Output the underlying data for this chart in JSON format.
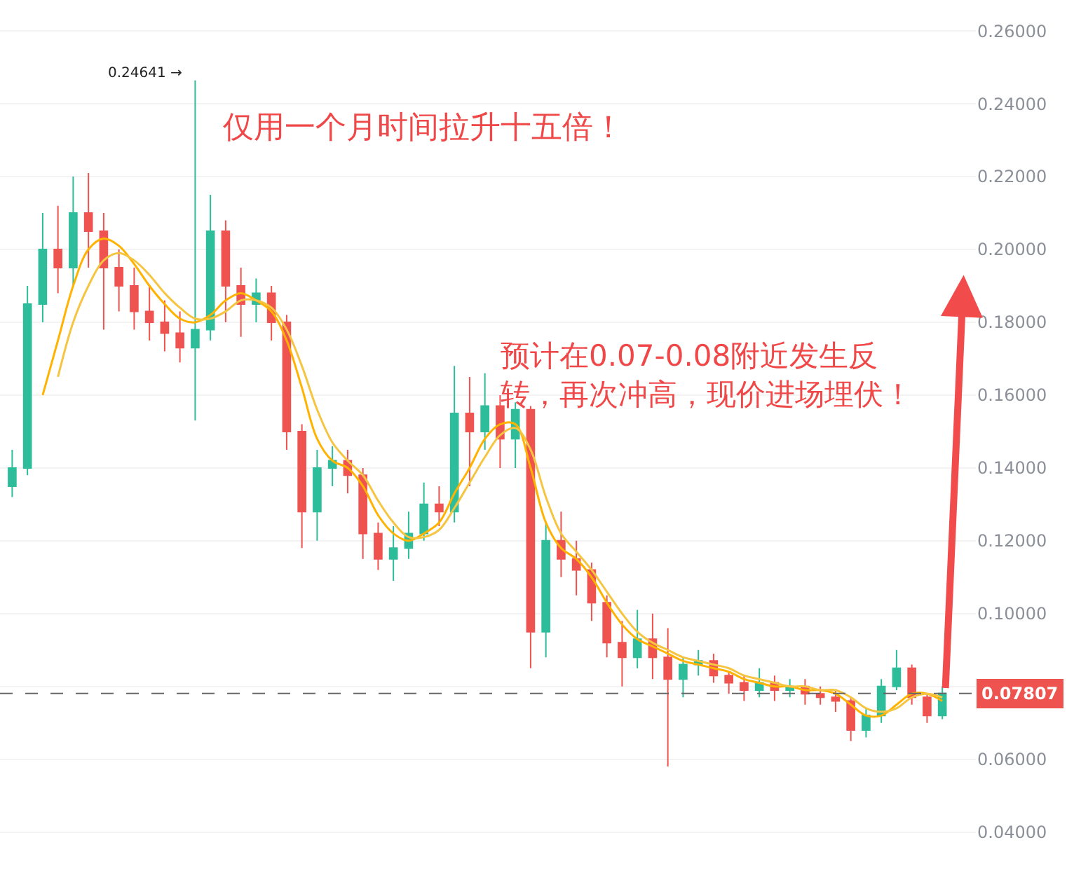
{
  "chart_data": {
    "type": "candlestick",
    "categories": [
      null,
      null,
      null,
      null,
      null,
      null,
      null,
      null,
      null,
      null,
      null,
      null,
      null,
      null,
      null,
      null,
      null,
      null,
      null,
      null,
      null,
      null,
      null,
      null,
      null,
      null,
      null,
      null,
      null,
      null,
      null,
      null,
      null,
      null,
      null,
      null,
      null,
      null,
      null,
      null,
      null,
      null,
      null,
      null,
      null,
      null,
      null,
      null,
      null,
      null,
      null,
      null,
      null,
      null,
      null,
      null,
      null,
      null,
      null,
      null,
      null,
      null
    ],
    "series": [
      {
        "ohlc": [
          [
            0.135,
            0.145,
            0.132,
            0.14
          ],
          [
            0.14,
            0.19,
            0.138,
            0.185
          ],
          [
            0.185,
            0.21,
            0.18,
            0.2
          ],
          [
            0.2,
            0.212,
            0.188,
            0.195
          ],
          [
            0.195,
            0.22,
            0.19,
            0.21
          ],
          [
            0.21,
            0.221,
            0.195,
            0.205
          ],
          [
            0.205,
            0.21,
            0.178,
            0.195
          ],
          [
            0.195,
            0.2,
            0.183,
            0.19
          ],
          [
            0.19,
            0.195,
            0.178,
            0.183
          ],
          [
            0.183,
            0.19,
            0.175,
            0.18
          ],
          [
            0.18,
            0.186,
            0.172,
            0.177
          ],
          [
            0.177,
            0.183,
            0.169,
            0.173
          ],
          [
            0.173,
            0.24641,
            0.153,
            0.178
          ],
          [
            0.178,
            0.215,
            0.175,
            0.205
          ],
          [
            0.205,
            0.208,
            0.18,
            0.19
          ],
          [
            0.19,
            0.195,
            0.176,
            0.185
          ],
          [
            0.185,
            0.192,
            0.18,
            0.188
          ],
          [
            0.188,
            0.19,
            0.175,
            0.18
          ],
          [
            0.18,
            0.182,
            0.145,
            0.15
          ],
          [
            0.15,
            0.152,
            0.118,
            0.128
          ],
          [
            0.128,
            0.145,
            0.12,
            0.14
          ],
          [
            0.14,
            0.146,
            0.135,
            0.142
          ],
          [
            0.142,
            0.145,
            0.133,
            0.138
          ],
          [
            0.138,
            0.14,
            0.115,
            0.122
          ],
          [
            0.122,
            0.125,
            0.112,
            0.115
          ],
          [
            0.115,
            0.124,
            0.109,
            0.118
          ],
          [
            0.118,
            0.128,
            0.115,
            0.122
          ],
          [
            0.122,
            0.136,
            0.12,
            0.13
          ],
          [
            0.13,
            0.135,
            0.124,
            0.128
          ],
          [
            0.128,
            0.168,
            0.125,
            0.155
          ],
          [
            0.155,
            0.165,
            0.135,
            0.15
          ],
          [
            0.15,
            0.166,
            0.145,
            0.157
          ],
          [
            0.157,
            0.16,
            0.14,
            0.148
          ],
          [
            0.148,
            0.158,
            0.14,
            0.156
          ],
          [
            0.156,
            0.157,
            0.085,
            0.095
          ],
          [
            0.095,
            0.125,
            0.088,
            0.12
          ],
          [
            0.12,
            0.128,
            0.11,
            0.115
          ],
          [
            0.115,
            0.12,
            0.105,
            0.112
          ],
          [
            0.112,
            0.114,
            0.098,
            0.103
          ],
          [
            0.103,
            0.105,
            0.088,
            0.092
          ],
          [
            0.092,
            0.098,
            0.08,
            0.088
          ],
          [
            0.088,
            0.101,
            0.085,
            0.093
          ],
          [
            0.093,
            0.1,
            0.082,
            0.088
          ],
          [
            0.088,
            0.096,
            0.058,
            0.082
          ],
          [
            0.082,
            0.088,
            0.077,
            0.086
          ],
          [
            0.086,
            0.09,
            0.083,
            0.087
          ],
          [
            0.087,
            0.089,
            0.081,
            0.083
          ],
          [
            0.083,
            0.084,
            0.078,
            0.081
          ],
          [
            0.081,
            0.083,
            0.076,
            0.079
          ],
          [
            0.079,
            0.085,
            0.077,
            0.081
          ],
          [
            0.081,
            0.083,
            0.076,
            0.079
          ],
          [
            0.079,
            0.082,
            0.077,
            0.08
          ],
          [
            0.08,
            0.082,
            0.075,
            0.078
          ],
          [
            0.078,
            0.08,
            0.075,
            0.077
          ],
          [
            0.077,
            0.079,
            0.073,
            0.076
          ],
          [
            0.076,
            0.077,
            0.065,
            0.068
          ],
          [
            0.068,
            0.074,
            0.066,
            0.072
          ],
          [
            0.072,
            0.082,
            0.07,
            0.08
          ],
          [
            0.08,
            0.09,
            0.079,
            0.085
          ],
          [
            0.085,
            0.086,
            0.075,
            0.077
          ],
          [
            0.077,
            0.078,
            0.07,
            0.072
          ],
          [
            0.072,
            0.08,
            0.071,
            0.07807
          ]
        ],
        "colors": [
          "#2ebd9b",
          "#2ebd9b",
          "#2ebd9b",
          "#ef5350",
          "#2ebd9b",
          "#ef5350",
          "#ef5350",
          "#ef5350",
          "#ef5350",
          "#ef5350",
          "#ef5350",
          "#ef5350",
          "#2ebd9b",
          "#2ebd9b",
          "#ef5350",
          "#ef5350",
          "#2ebd9b",
          "#ef5350",
          "#ef5350",
          "#ef5350",
          "#2ebd9b",
          "#2ebd9b",
          "#ef5350",
          "#ef5350",
          "#ef5350",
          "#2ebd9b",
          "#2ebd9b",
          "#2ebd9b",
          "#ef5350",
          "#2ebd9b",
          "#ef5350",
          "#2ebd9b",
          "#ef5350",
          "#2ebd9b",
          "#ef5350",
          "#2ebd9b",
          "#ef5350",
          "#ef5350",
          "#ef5350",
          "#ef5350",
          "#ef5350",
          "#2ebd9b",
          "#ef5350",
          "#ef5350",
          "#2ebd9b",
          "#2ebd9b",
          "#ef5350",
          "#ef5350",
          "#ef5350",
          "#2ebd9b",
          "#ef5350",
          "#2ebd9b",
          "#ef5350",
          "#ef5350",
          "#ef5350",
          "#ef5350",
          "#2ebd9b",
          "#2ebd9b",
          "#2ebd9b",
          "#ef5350",
          "#ef5350",
          "#2ebd9b"
        ]
      },
      {
        "type": "line",
        "color": "#ffb300",
        "values": [
          null,
          null,
          0.16,
          0.175,
          0.19,
          0.2,
          0.203,
          0.201,
          0.196,
          0.19,
          0.185,
          0.181,
          0.18,
          0.182,
          0.186,
          0.188,
          0.186,
          0.183,
          0.175,
          0.162,
          0.148,
          0.142,
          0.14,
          0.135,
          0.127,
          0.122,
          0.12,
          0.122,
          0.125,
          0.133,
          0.14,
          0.148,
          0.152,
          0.152,
          0.14,
          0.125,
          0.118,
          0.115,
          0.11,
          0.103,
          0.097,
          0.093,
          0.091,
          0.089,
          0.087,
          0.086,
          0.085,
          0.084,
          0.082,
          0.081,
          0.08,
          0.08,
          0.079,
          0.079,
          0.078,
          0.075,
          0.072,
          0.072,
          0.075,
          0.078,
          0.078,
          0.076
        ]
      },
      {
        "type": "line",
        "color": "#f5c542",
        "values": [
          null,
          null,
          null,
          0.165,
          0.18,
          0.19,
          0.197,
          0.199,
          0.197,
          0.193,
          0.188,
          0.184,
          0.181,
          0.181,
          0.183,
          0.186,
          0.186,
          0.184,
          0.178,
          0.168,
          0.156,
          0.147,
          0.142,
          0.138,
          0.131,
          0.125,
          0.121,
          0.121,
          0.123,
          0.129,
          0.136,
          0.143,
          0.149,
          0.151,
          0.145,
          0.132,
          0.122,
          0.117,
          0.112,
          0.106,
          0.1,
          0.095,
          0.092,
          0.09,
          0.088,
          0.087,
          0.086,
          0.085,
          0.083,
          0.082,
          0.081,
          0.08,
          0.08,
          0.079,
          0.079,
          0.077,
          0.074,
          0.073,
          0.074,
          0.077,
          0.078,
          0.077
        ]
      }
    ],
    "ylim": [
      0.023,
      0.2685
    ],
    "yticks": [
      {
        "value": 0.04,
        "label": "0.04000"
      },
      {
        "value": 0.06,
        "label": "0.06000"
      },
      {
        "value": 0.08,
        "label": null
      },
      {
        "value": 0.1,
        "label": "0.10000"
      },
      {
        "value": 0.12,
        "label": "0.12000"
      },
      {
        "value": 0.14,
        "label": "0.14000"
      },
      {
        "value": 0.16,
        "label": "0.16000"
      },
      {
        "value": 0.18,
        "label": "0.18000"
      },
      {
        "value": 0.2,
        "label": "0.20000"
      },
      {
        "value": 0.22,
        "label": "0.22000"
      },
      {
        "value": 0.24,
        "label": "0.24000"
      },
      {
        "value": 0.26,
        "label": "0.26000"
      }
    ],
    "ref_lines": [
      {
        "axis": "y",
        "value": 0.07807,
        "label": "0.07807",
        "color": "#666666",
        "line_style": "dashed"
      }
    ],
    "annotations": [
      "0.24641 →",
      "仅用一个月时间拉升十五倍！",
      "预计在0.07-0.08附近发生反转，再次冲高，现价进场埋伏！"
    ],
    "grid": true,
    "tick_labels": "y"
  }
}
